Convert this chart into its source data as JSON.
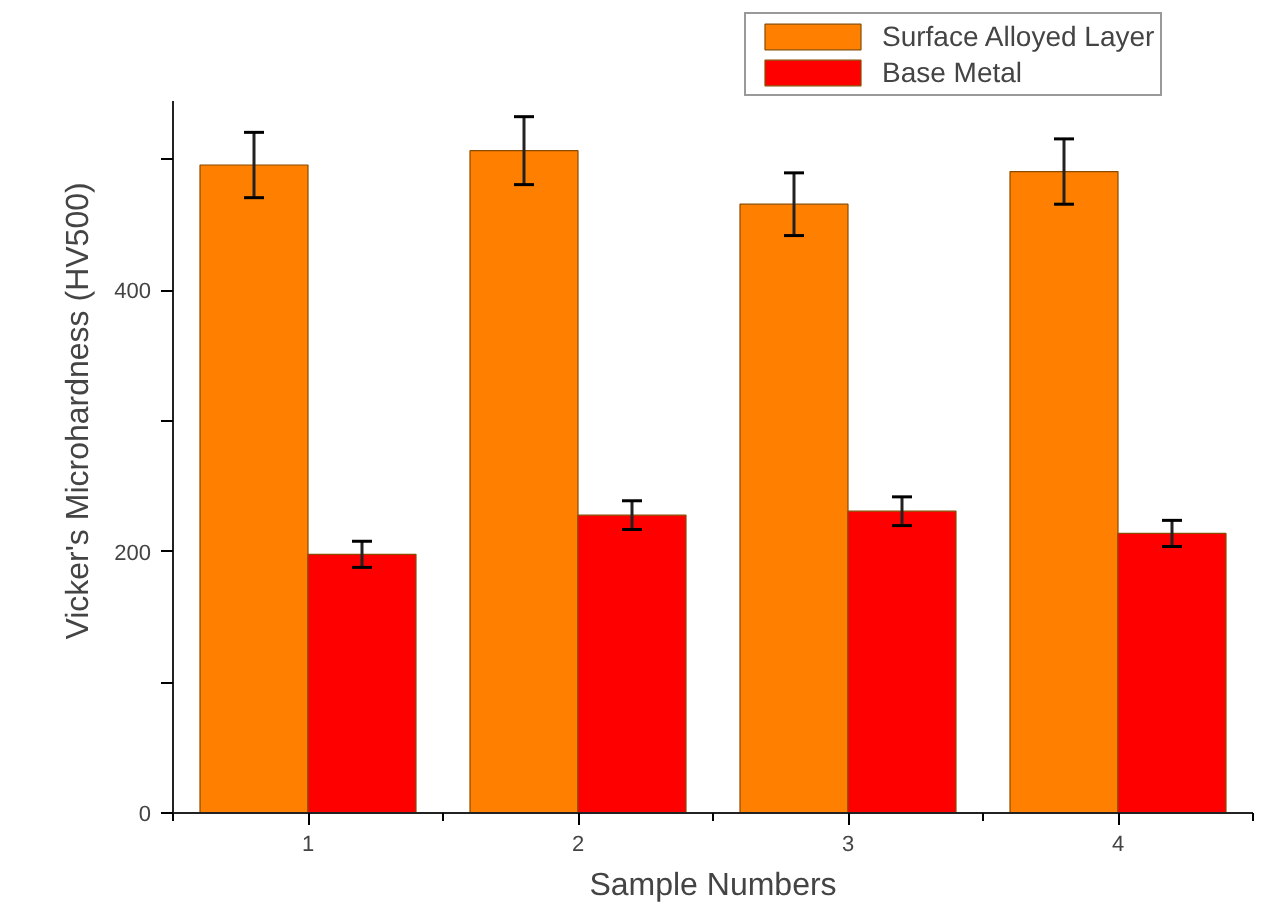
{
  "chart_data": {
    "type": "bar",
    "xlabel": "Sample Numbers",
    "ylabel": "Vicker's Microhardness (HV500)",
    "categories": [
      "1",
      "2",
      "3",
      "4"
    ],
    "series": [
      {
        "name": "Surface Alloyed Layer",
        "color": "#ff8000",
        "values": [
          496,
          507,
          466,
          491
        ],
        "errors": [
          25,
          26,
          24,
          25
        ]
      },
      {
        "name": "Base Metal",
        "color": "#ff0000",
        "values": [
          198,
          228,
          231,
          214
        ],
        "errors": [
          10,
          11,
          11,
          10
        ]
      }
    ],
    "ylim": [
      0,
      545
    ],
    "yticks": [
      0,
      {
        "value": 100,
        "label": null
      },
      200,
      {
        "value": 300,
        "label": null
      },
      400,
      {
        "value": 500,
        "label": null
      }
    ],
    "grid": false,
    "legend": "top right"
  }
}
